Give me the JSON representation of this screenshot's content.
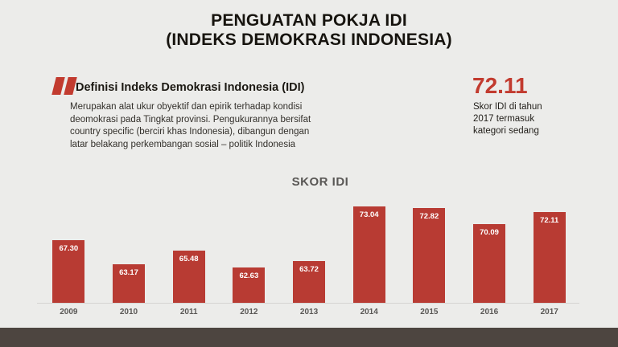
{
  "slide": {
    "title_line1": "PENGUATAN POKJA IDI",
    "title_line2": "(INDEKS DEMOKRASI INDONESIA)"
  },
  "quote": {
    "heading": "Definisi Indeks Demokrasi Indonesia (IDI)",
    "body_lines": [
      "Merupakan alat ukur obyektif dan epirik terhadap kondisi",
      "deomokrasi pada Tingkat provinsi. Pengukurannya bersifat",
      "country specific (berciri khas Indonesia), dibangun dengan",
      "latar belakang perkembangan sosial – politik Indonesia"
    ],
    "quote_icon": "double-quote-mark"
  },
  "stat": {
    "value": "72.11",
    "caption_lines": [
      "Skor IDI di tahun",
      "2017 termasuk",
      "kategori sedang"
    ]
  },
  "chart_data": {
    "type": "bar",
    "title": "SKOR IDI",
    "categories": [
      "2009",
      "2010",
      "2011",
      "2012",
      "2013",
      "2014",
      "2015",
      "2016",
      "2017"
    ],
    "values": [
      67.3,
      63.17,
      65.48,
      62.63,
      63.72,
      73.04,
      72.82,
      70.09,
      72.11
    ],
    "value_labels": [
      "67.30",
      "63.17",
      "65.48",
      "62.63",
      "63.72",
      "73.04",
      "72.82",
      "70.09",
      "72.11"
    ],
    "xlabel": "",
    "ylabel": "",
    "ylim": [
      56.5,
      73.5
    ],
    "grid": false,
    "legend": "none",
    "value_label_position": "inside-top"
  },
  "colors": {
    "background": "#ECECEA",
    "accent_red": "#C23B2F",
    "bar_red": "#B83B33",
    "bar_value_text": "#FFFFFF",
    "chart_text_gray": "#595755",
    "footer_brown": "#4D4540",
    "title_black": "#17140F"
  }
}
